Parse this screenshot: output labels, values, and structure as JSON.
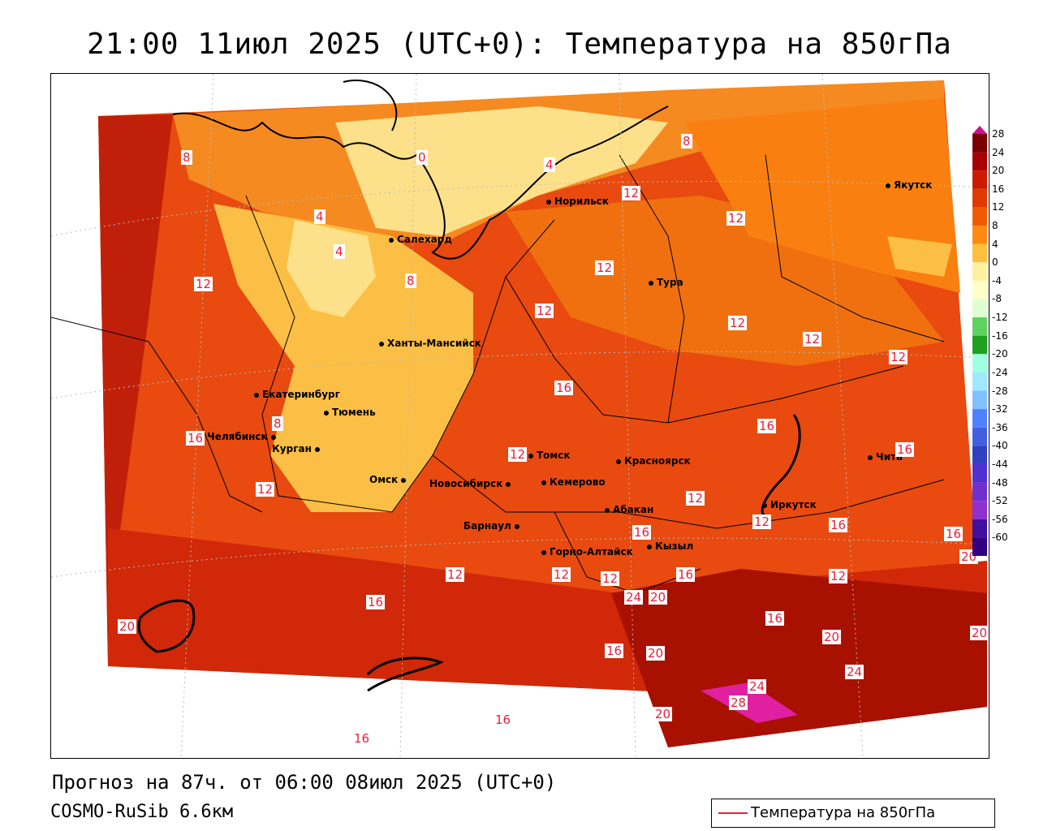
{
  "title": "21:00 11июл 2025 (UTC+0): Температура на 850гПа",
  "footer": {
    "forecast": "Прогноз на 87ч. от 06:00 08июл 2025 (UTC+0)",
    "model": "COSMO-RuSib 6.6км"
  },
  "legend_key": "Температура на 850гПа",
  "colorbar": {
    "labels": [
      "28",
      "24",
      "20",
      "16",
      "12",
      "8",
      "4",
      "0",
      "-4",
      "-8",
      "-12",
      "-16",
      "-20",
      "-24",
      "-28",
      "-32",
      "-36",
      "-40",
      "-44",
      "-48",
      "-52",
      "-56",
      "-60"
    ],
    "colors": [
      "#7a0000",
      "#a80000",
      "#cc1a00",
      "#e03a00",
      "#f05a00",
      "#ff8a10",
      "#ffc040",
      "#fff0a0",
      "#ffffc8",
      "#e0ffd0",
      "#60d060",
      "#20a020",
      "#a0ffe0",
      "#a0e8ff",
      "#80c0ff",
      "#5080ff",
      "#4060e0",
      "#3040c0",
      "#5030d0",
      "#7030d0",
      "#9030d0",
      "#4010a0",
      "#300080"
    ]
  },
  "cities": [
    {
      "name": "Норильск"
    },
    {
      "name": "Якутск"
    },
    {
      "name": "Салехард"
    },
    {
      "name": "Тура"
    },
    {
      "name": "Ханты-Мансийск"
    },
    {
      "name": "Екатеринбург"
    },
    {
      "name": "Тюмень"
    },
    {
      "name": "Челябинск"
    },
    {
      "name": "Курган"
    },
    {
      "name": "Омск"
    },
    {
      "name": "Томск"
    },
    {
      "name": "Красноярск"
    },
    {
      "name": "Новосибирск"
    },
    {
      "name": "Кемерово"
    },
    {
      "name": "Абакан"
    },
    {
      "name": "Иркутск"
    },
    {
      "name": "Чита"
    },
    {
      "name": "Барнаул"
    },
    {
      "name": "Горно-Алтайск"
    },
    {
      "name": "Кызыл"
    }
  ],
  "isotherm_labels": [
    "8",
    "0",
    "4",
    "12",
    "8",
    "4",
    "12",
    "4",
    "12",
    "12",
    "12",
    "8",
    "12",
    "12",
    "12",
    "16",
    "12",
    "8",
    "16",
    "12",
    "16",
    "12",
    "16",
    "16",
    "12",
    "16",
    "16",
    "12",
    "12",
    "16",
    "20",
    "12",
    "24",
    "20",
    "16",
    "12",
    "20",
    "16",
    "20",
    "16",
    "20",
    "24",
    "24",
    "28",
    "20",
    "16",
    "16",
    "20"
  ]
}
